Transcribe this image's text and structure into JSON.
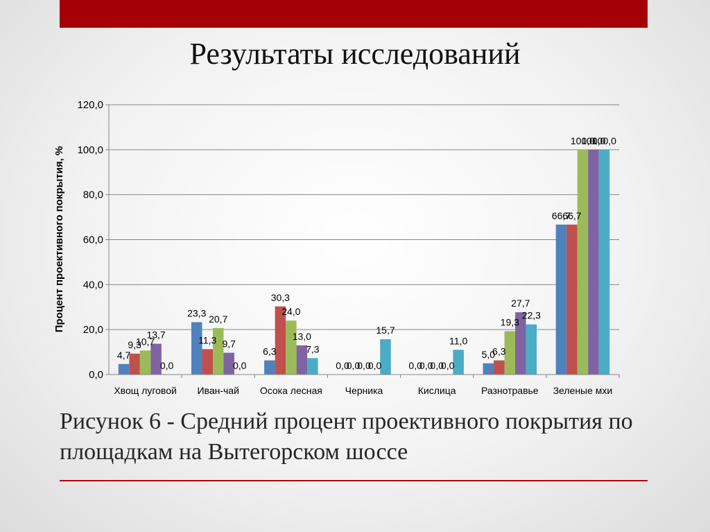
{
  "slide": {
    "title": "Результаты исследований",
    "caption": "Рисунок 6 - Средний процент проективного покрытия по площадкам на Вытегорском шоссе",
    "accent_color": "#a50006"
  },
  "chart_data": {
    "type": "bar",
    "ylabel": "Процент проективного покрытия, %",
    "ylim": [
      0,
      120
    ],
    "yticks": [
      "0,0",
      "20,0",
      "40,0",
      "60,0",
      "80,0",
      "100,0",
      "120,0"
    ],
    "ytick_values": [
      0,
      20,
      40,
      60,
      80,
      100,
      120
    ],
    "grid": true,
    "legend": "none",
    "categories": [
      "Хвощ луговой",
      "Иван-чай",
      "Осока лесная",
      "Черника",
      "Кислица",
      "Разнотравье",
      "Зеленые мхи"
    ],
    "series": [
      {
        "color": "#4f81bd",
        "values": [
          4.7,
          23.3,
          6.3,
          0.0,
          0.0,
          5.0,
          66.7
        ],
        "labels": [
          "4,7",
          "23,3",
          "6,3",
          "0,0",
          "0,0",
          "5,0",
          "66,7"
        ]
      },
      {
        "color": "#c0504d",
        "values": [
          9.3,
          11.3,
          30.3,
          0.0,
          0.0,
          6.3,
          66.7
        ],
        "labels": [
          "9,3",
          "11,3",
          "30,3",
          "0,0",
          "0,0",
          "6,3",
          "66,7"
        ]
      },
      {
        "color": "#9bbb59",
        "values": [
          10.7,
          20.7,
          24.0,
          0.0,
          0.0,
          19.3,
          100.0
        ],
        "labels": [
          "10,7",
          "20,7",
          "24,0",
          "0,0",
          "0,0",
          "19,3",
          "100,0"
        ]
      },
      {
        "color": "#8064a2",
        "values": [
          13.7,
          9.7,
          13.0,
          0.0,
          0.0,
          27.7,
          100.0
        ],
        "labels": [
          "13,7",
          "9,7",
          "13,0",
          "0,0",
          "0,0",
          "27,7",
          "100,0"
        ]
      },
      {
        "color": "#4bacc6",
        "values": [
          0.0,
          0.0,
          7.3,
          15.7,
          11.0,
          22.3,
          100.0
        ],
        "labels": [
          "0,0",
          "0,0",
          "7,3",
          "15,7",
          "11,0",
          "22,3",
          "100,0"
        ]
      }
    ]
  }
}
